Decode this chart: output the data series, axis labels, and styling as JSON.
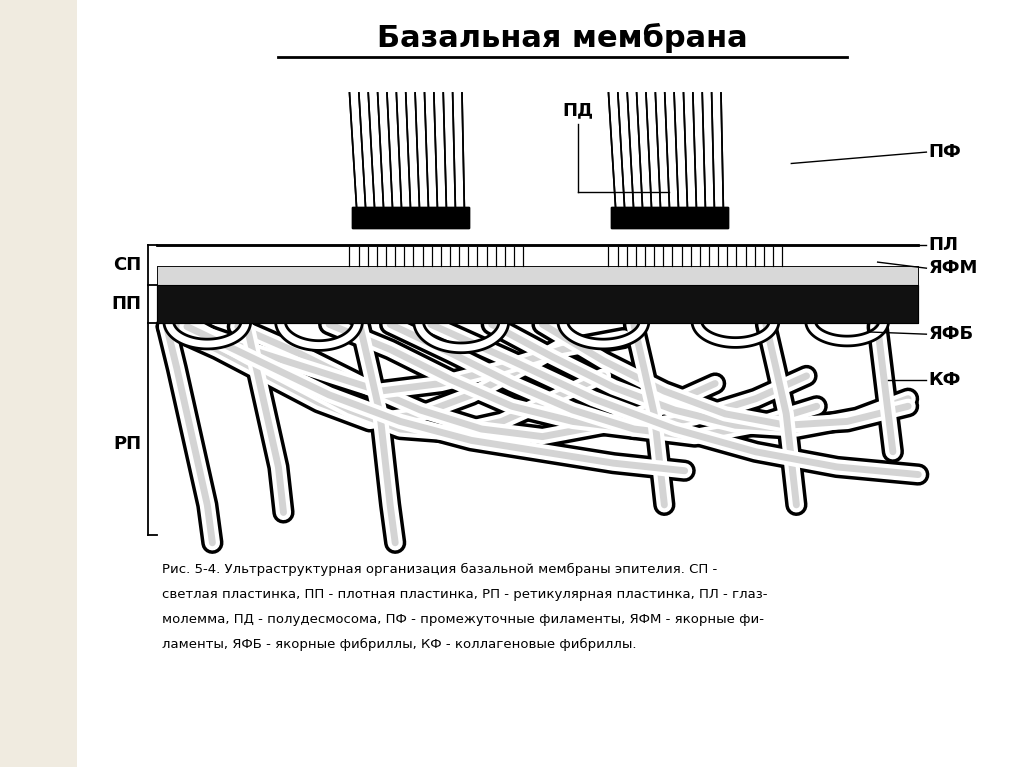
{
  "title": "Базальная мембрана",
  "bg_color": "#f0ebe0",
  "right_bg_color": "#ffffff",
  "caption_line1": "Рис. 5-4. Ультраструктурная организация базальной мембраны эпителия. СП -",
  "caption_line2": "светлая пластинка, ПП - плотная пластинка, РП - ретикулярная пластинка, ПЛ - глаз-",
  "caption_line3": "молемма, ПД - полудесмосома, ПФ - промежуточные филаменты, ЯФМ - якорные фи-",
  "caption_line4": "ламенты, ЯФБ - якорные фибриллы, КФ - коллагеновые фибриллы.",
  "labels": {
    "PD": "ПД",
    "PF": "ПФ",
    "PL": "ПЛ",
    "YaFM": "ЯФМ",
    "SP": "СП",
    "PP": "ПП",
    "YaFB": "ЯФБ",
    "KF": "КФ",
    "RP": "РП"
  }
}
